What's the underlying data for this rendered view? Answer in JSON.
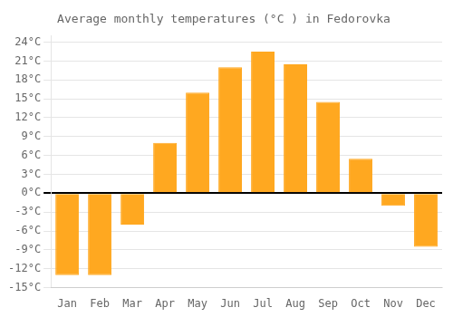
{
  "chart_data": {
    "type": "bar",
    "title": "Average monthly temperatures (°C ) in Fedorovka",
    "categories": [
      "Jan",
      "Feb",
      "Mar",
      "Apr",
      "May",
      "Jun",
      "Jul",
      "Aug",
      "Sep",
      "Oct",
      "Nov",
      "Dec"
    ],
    "values": [
      -13,
      -13,
      -5,
      8,
      16,
      20,
      22.5,
      20.5,
      14.5,
      5.5,
      -2,
      -8.5
    ],
    "color": "#FFA820",
    "ylim": [
      -15,
      25
    ],
    "yticks": [
      {
        "value": -15,
        "label": "-15°C"
      },
      {
        "value": -12,
        "label": "-12°C"
      },
      {
        "value": -9,
        "label": "-9°C"
      },
      {
        "value": -6,
        "label": "-6°C"
      },
      {
        "value": -3,
        "label": "-3°C"
      },
      {
        "value": 0,
        "label": "0°C"
      },
      {
        "value": 3,
        "label": "3°C"
      },
      {
        "value": 6,
        "label": "6°C"
      },
      {
        "value": 9,
        "label": "9°C"
      },
      {
        "value": 12,
        "label": "12°C"
      },
      {
        "value": 15,
        "label": "15°C"
      },
      {
        "value": 18,
        "label": "18°C"
      },
      {
        "value": 21,
        "label": "21°C"
      },
      {
        "value": 24,
        "label": "24°C"
      }
    ],
    "grid": true
  }
}
